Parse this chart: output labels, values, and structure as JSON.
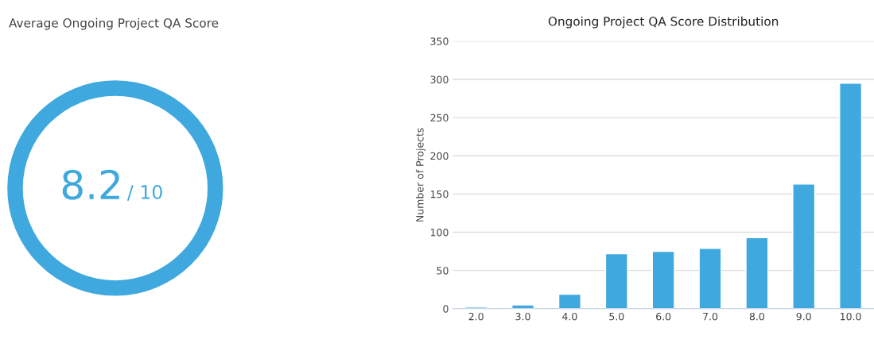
{
  "chart_data": [
    {
      "type": "other",
      "title": "Average Ongoing Project QA Score",
      "annotations": [
        "8.2",
        "/ 10"
      ]
    },
    {
      "type": "bar",
      "title": "Ongoing Project QA Score Distribution",
      "ylabel": "Number of Projects",
      "categories": [
        "2.0",
        "3.0",
        "4.0",
        "5.0",
        "6.0",
        "7.0",
        "8.0",
        "9.0",
        "10.0"
      ],
      "values": [
        2,
        5,
        19,
        72,
        75,
        79,
        93,
        163,
        295
      ],
      "color": "#3fa8de",
      "ylim": [
        0,
        350
      ],
      "yticks": [
        0,
        50,
        100,
        150,
        200,
        250,
        300,
        350
      ],
      "grid": "y"
    }
  ]
}
